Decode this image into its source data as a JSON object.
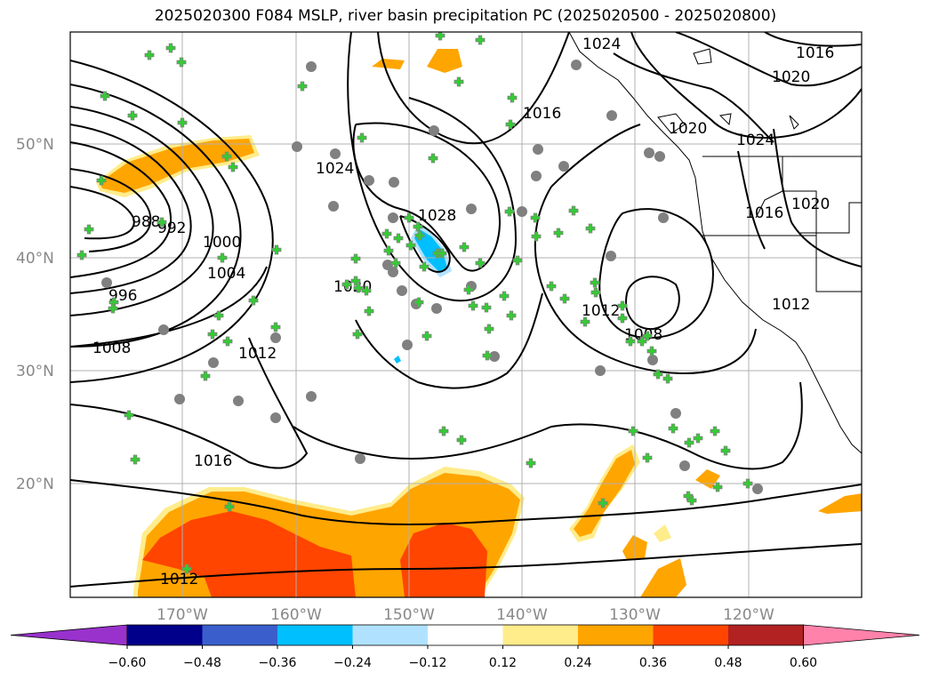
{
  "title": "2025020300 F084 MSLP, river basin precipitation PC (2025020500 - 2025020800)",
  "lat_labels": [
    "50°N",
    "40°N",
    "30°N",
    "20°N"
  ],
  "lon_labels": [
    "170°W",
    "160°W",
    "150°W",
    "140°W",
    "130°W",
    "120°W"
  ],
  "contour_labels": [
    "1024",
    "1016",
    "1020",
    "1016",
    "1020",
    "1024",
    "1016",
    "1020",
    "1024",
    "1028",
    "988",
    "992",
    "1000",
    "1004",
    "996",
    "1020",
    "1012",
    "1008",
    "1012",
    "1008",
    "1012",
    "1016",
    "1012"
  ],
  "colorbar": {
    "ticks": [
      "−0.60",
      "−0.48",
      "−0.36",
      "−0.24",
      "−0.12",
      "0.12",
      "0.24",
      "0.36",
      "0.48",
      "0.60"
    ],
    "colors": [
      "#9932cc",
      "#00008b",
      "#3a5fcd",
      "#00bfff",
      "#b0e2ff",
      "#ffffff",
      "#ffec8b",
      "#ffa500",
      "#ff4500",
      "#b22222",
      "#ff82ab"
    ]
  },
  "colors": {
    "contour": "#000000",
    "marker_fill": "#32cd32",
    "marker_edge": "#808080",
    "grid": "#b0b0b0"
  }
}
